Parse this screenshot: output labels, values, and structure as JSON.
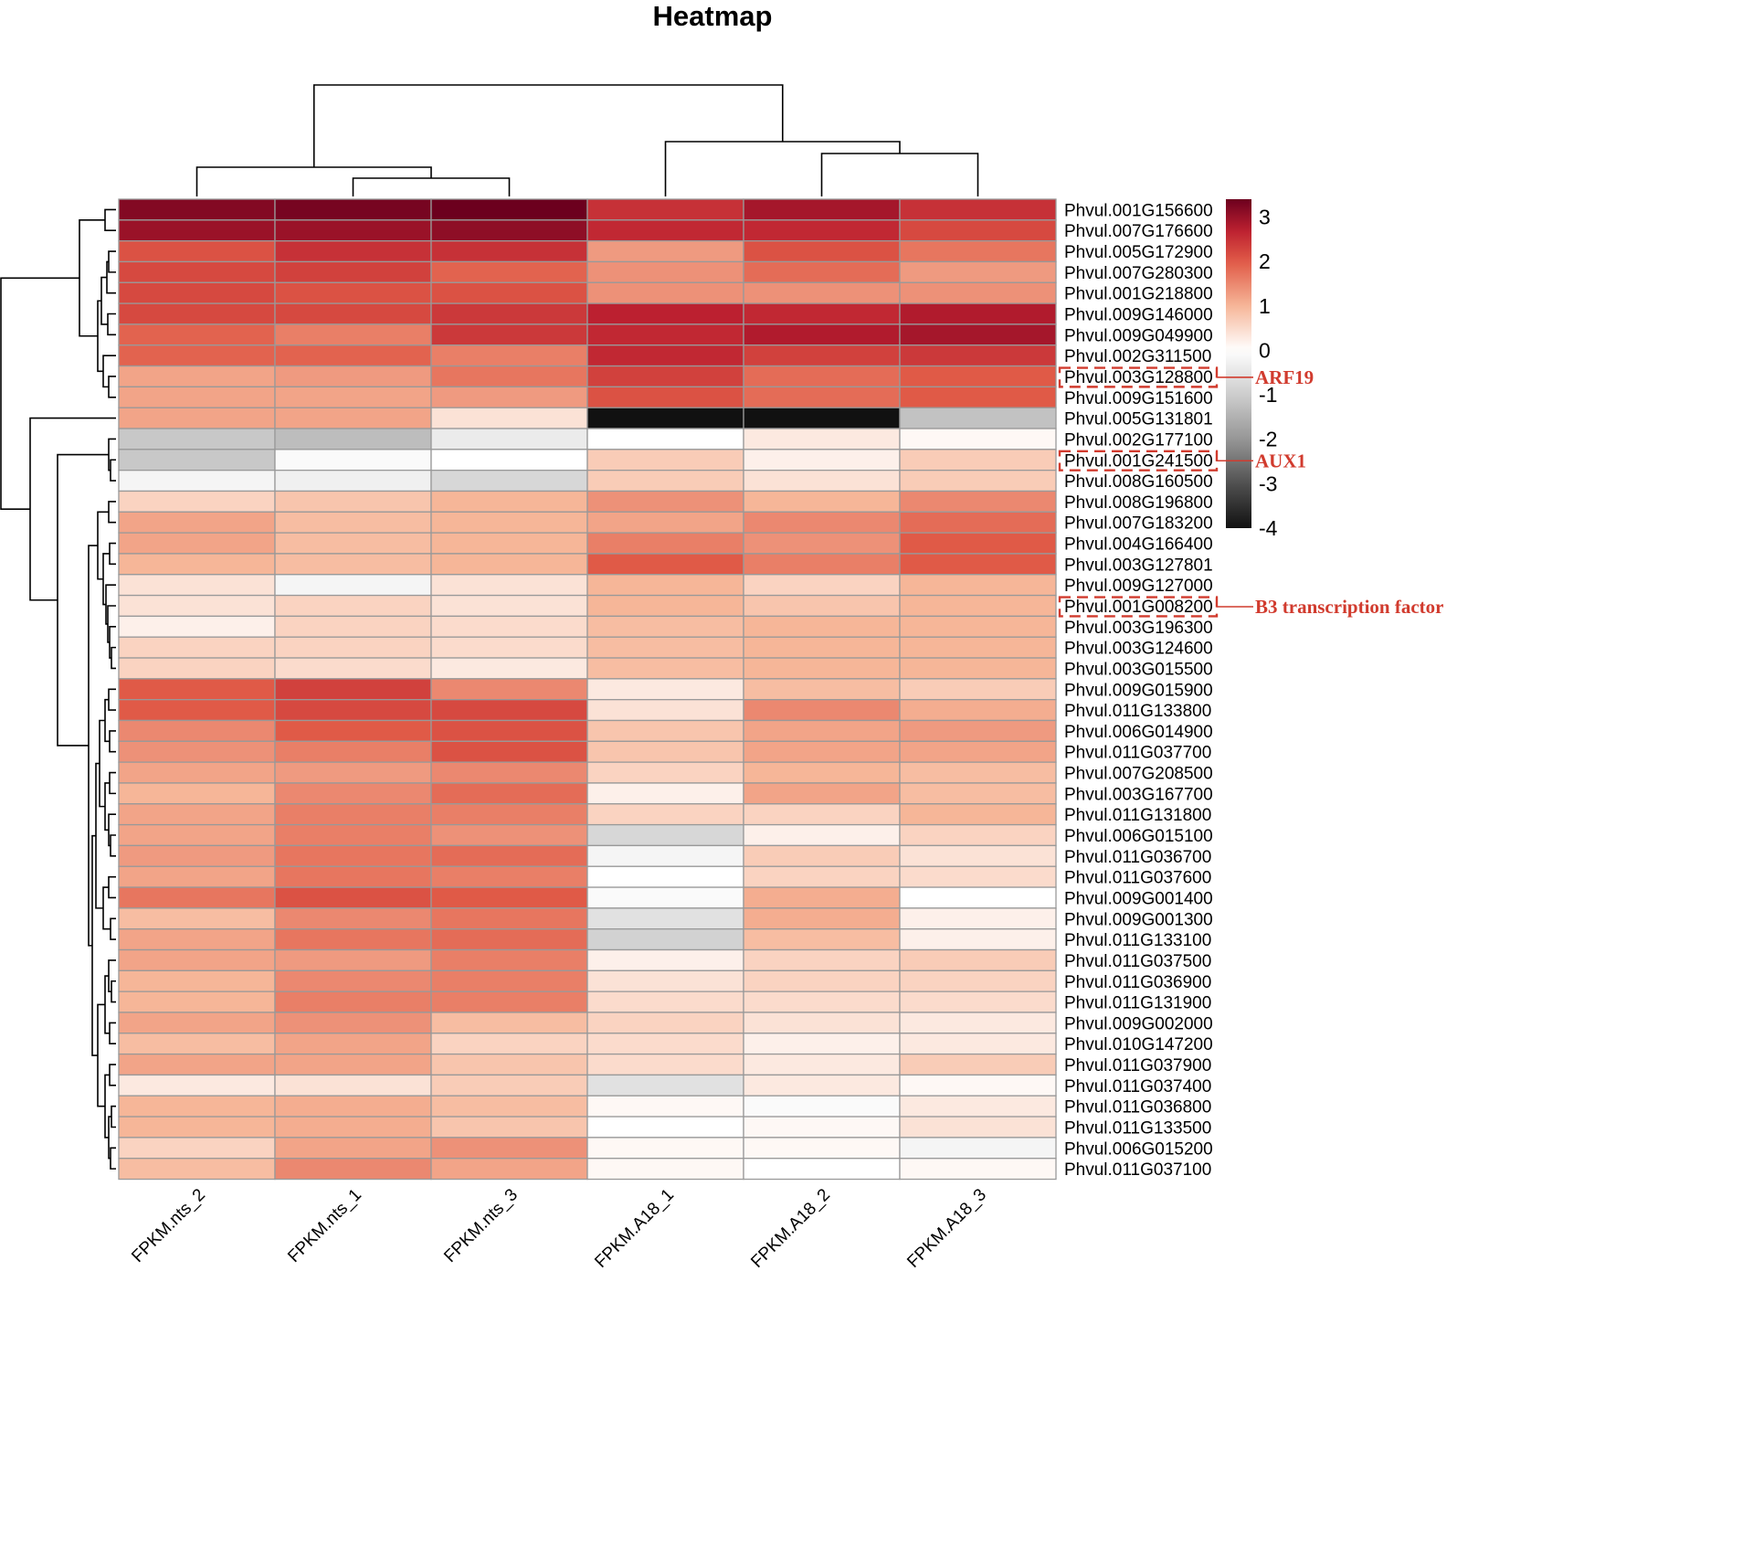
{
  "chart_data": {
    "type": "heatmap",
    "title": "Heatmap",
    "columns": [
      "FPKM.nts_2",
      "FPKM.nts_1",
      "FPKM.nts_3",
      "FPKM.A18_1",
      "FPKM.A18_2",
      "FPKM.A18_3"
    ],
    "rows": [
      "Phvul.001G156600",
      "Phvul.007G176600",
      "Phvul.005G172900",
      "Phvul.007G280300",
      "Phvul.001G218800",
      "Phvul.009G146000",
      "Phvul.009G049900",
      "Phvul.002G311500",
      "Phvul.003G128800",
      "Phvul.009G151600",
      "Phvul.005G131801",
      "Phvul.002G177100",
      "Phvul.001G241500",
      "Phvul.008G160500",
      "Phvul.008G196800",
      "Phvul.007G183200",
      "Phvul.004G166400",
      "Phvul.003G127801",
      "Phvul.009G127000",
      "Phvul.001G008200",
      "Phvul.003G196300",
      "Phvul.003G124600",
      "Phvul.003G015500",
      "Phvul.009G015900",
      "Phvul.011G133800",
      "Phvul.006G014900",
      "Phvul.011G037700",
      "Phvul.007G208500",
      "Phvul.003G167700",
      "Phvul.011G131800",
      "Phvul.006G015100",
      "Phvul.011G036700",
      "Phvul.011G037600",
      "Phvul.009G001400",
      "Phvul.009G001300",
      "Phvul.011G133100",
      "Phvul.011G037500",
      "Phvul.011G036900",
      "Phvul.011G131900",
      "Phvul.009G002000",
      "Phvul.010G147200",
      "Phvul.011G037900",
      "Phvul.011G037400",
      "Phvul.011G036800",
      "Phvul.011G133500",
      "Phvul.006G015200",
      "Phvul.011G037100"
    ],
    "values": [
      [
        3.2,
        3.3,
        3.4,
        2.5,
        2.9,
        2.5
      ],
      [
        3.0,
        3.0,
        3.1,
        2.6,
        2.6,
        2.2
      ],
      [
        2.1,
        2.5,
        2.5,
        1.3,
        2.1,
        1.7
      ],
      [
        2.2,
        2.3,
        1.9,
        1.4,
        1.8,
        1.3
      ],
      [
        2.2,
        2.1,
        2.1,
        1.4,
        1.4,
        1.4
      ],
      [
        2.2,
        2.2,
        2.4,
        2.7,
        2.6,
        2.8
      ],
      [
        1.9,
        1.6,
        2.4,
        2.6,
        2.8,
        2.9
      ],
      [
        1.9,
        1.9,
        1.6,
        2.6,
        2.3,
        2.4
      ],
      [
        1.2,
        1.3,
        1.7,
        2.3,
        1.8,
        2.0
      ],
      [
        1.2,
        1.2,
        1.3,
        2.1,
        1.8,
        2.0
      ],
      [
        1.2,
        1.2,
        0.4,
        -4.0,
        -4.0,
        -1.2
      ],
      [
        -1.1,
        -1.3,
        -0.4,
        0.0,
        0.3,
        0.1
      ],
      [
        -1.1,
        -0.1,
        0.0,
        0.7,
        0.2,
        0.7
      ],
      [
        -0.2,
        -0.3,
        -0.8,
        0.7,
        0.4,
        0.7
      ],
      [
        0.6,
        0.8,
        1.0,
        1.4,
        1.0,
        1.5
      ],
      [
        1.2,
        0.9,
        1.0,
        1.2,
        1.5,
        1.8
      ],
      [
        1.2,
        0.9,
        1.0,
        1.6,
        1.4,
        2.0
      ],
      [
        1.0,
        0.9,
        1.0,
        2.0,
        1.6,
        2.0
      ],
      [
        0.4,
        -0.2,
        0.4,
        1.0,
        0.6,
        1.0
      ],
      [
        0.4,
        0.6,
        0.4,
        1.0,
        0.8,
        1.0
      ],
      [
        0.2,
        0.6,
        0.5,
        0.9,
        1.0,
        1.0
      ],
      [
        0.6,
        0.6,
        0.5,
        0.9,
        1.0,
        1.0
      ],
      [
        0.6,
        0.5,
        0.3,
        0.9,
        1.0,
        1.0
      ],
      [
        2.0,
        2.3,
        1.5,
        0.3,
        0.9,
        0.7
      ],
      [
        2.0,
        2.2,
        2.2,
        0.4,
        1.5,
        1.1
      ],
      [
        1.5,
        2.0,
        2.1,
        0.8,
        1.2,
        1.3
      ],
      [
        1.4,
        1.6,
        2.1,
        0.8,
        1.2,
        1.2
      ],
      [
        1.2,
        1.3,
        1.5,
        0.6,
        1.0,
        0.9
      ],
      [
        1.0,
        1.5,
        1.8,
        0.2,
        1.2,
        0.9
      ],
      [
        1.2,
        1.6,
        1.6,
        0.6,
        0.6,
        1.0
      ],
      [
        1.2,
        1.6,
        1.4,
        -0.8,
        0.2,
        0.6
      ],
      [
        1.3,
        1.7,
        1.8,
        -0.2,
        0.7,
        0.4
      ],
      [
        1.2,
        1.7,
        1.6,
        0.0,
        0.6,
        0.5
      ],
      [
        1.7,
        2.1,
        2.0,
        -0.1,
        1.1,
        0.0
      ],
      [
        0.9,
        1.5,
        1.7,
        -0.6,
        1.1,
        0.2
      ],
      [
        1.2,
        1.7,
        1.8,
        -0.9,
        0.9,
        0.2
      ],
      [
        1.2,
        1.3,
        1.6,
        0.2,
        0.6,
        0.7
      ],
      [
        1.0,
        1.5,
        1.6,
        0.4,
        0.6,
        0.6
      ],
      [
        1.0,
        1.6,
        1.6,
        0.5,
        0.5,
        0.5
      ],
      [
        1.2,
        1.4,
        0.9,
        0.6,
        0.4,
        0.3
      ],
      [
        0.9,
        1.2,
        0.6,
        0.5,
        0.2,
        0.3
      ],
      [
        1.2,
        1.2,
        0.8,
        0.5,
        0.3,
        0.7
      ],
      [
        0.3,
        0.4,
        0.7,
        -0.6,
        0.3,
        0.1
      ],
      [
        1.0,
        1.1,
        0.9,
        0.1,
        -0.1,
        0.3
      ],
      [
        1.0,
        1.1,
        0.8,
        0.0,
        0.1,
        0.4
      ],
      [
        0.6,
        1.2,
        1.4,
        0.1,
        0.1,
        -0.2
      ],
      [
        0.9,
        1.5,
        1.2,
        0.1,
        0.0,
        0.1
      ]
    ],
    "legend": {
      "ticks": [
        "3",
        "2",
        "1",
        "0",
        "-1",
        "-2",
        "-3",
        "-4"
      ],
      "range": [
        -4,
        3.4
      ],
      "colors": {
        "high": "#6b0020",
        "mid_high": "#e05a47",
        "mid": "#ffffff",
        "low": "#111111"
      }
    },
    "annotations": [
      {
        "gene": "Phvul.003G128800",
        "label": "ARF19"
      },
      {
        "gene": "Phvul.001G241500",
        "label": "AUX1"
      },
      {
        "gene": "Phvul.001G008200",
        "label": "B3 transcription factor"
      }
    ],
    "annotation_color": "#d13b2e",
    "grid_color": "#999999"
  }
}
